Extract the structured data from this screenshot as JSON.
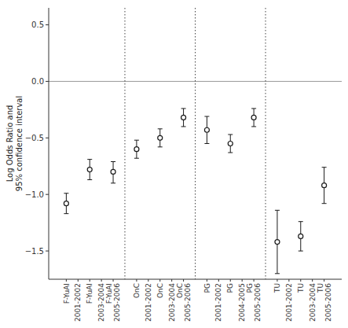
{
  "chart_data": {
    "type": "errorbar",
    "y_label": "Log Odds Ratio and\n95% confidence interval",
    "categories": [
      null,
      "F-YuAI",
      "2001-2002",
      "F-YuAI",
      "2003-2004",
      "F-YuAI\n2005-2006",
      null,
      "OnC",
      "2001-2002",
      "OnC",
      "2003-2004",
      "OnC\n2005-2006",
      null,
      "PG",
      "2001-2002",
      "PG",
      "2004-2005",
      "PG\n2005-2006",
      null,
      "TU",
      "2001-2002",
      "TU",
      "2003-2004",
      "TU\n2005-2006",
      null
    ],
    "values": [
      null,
      -1.08,
      null,
      -0.78,
      null,
      -0.8,
      null,
      -0.6,
      null,
      -0.5,
      null,
      -0.32,
      null,
      -0.43,
      null,
      -0.55,
      null,
      -0.32,
      null,
      -1.42,
      null,
      -1.37,
      null,
      -0.92,
      null
    ],
    "lower": [
      null,
      -1.17,
      null,
      -0.87,
      null,
      -0.9,
      null,
      -0.68,
      null,
      -0.58,
      null,
      -0.4,
      null,
      -0.55,
      null,
      -0.63,
      null,
      -0.4,
      null,
      -1.7,
      null,
      -1.5,
      null,
      -1.08,
      null
    ],
    "upper": [
      null,
      -0.99,
      null,
      -0.69,
      null,
      -0.71,
      null,
      -0.52,
      null,
      -0.42,
      null,
      -0.24,
      null,
      -0.31,
      null,
      -0.47,
      null,
      -0.24,
      null,
      -1.14,
      null,
      -1.24,
      null,
      -0.76,
      null
    ],
    "color": "#1a1a1a",
    "hline": 0.0,
    "vlines": [
      6,
      12,
      18
    ],
    "ylim": [
      -1.75,
      0.65
    ],
    "yticks": [
      {
        "value": -1.5,
        "label": "−1.5"
      },
      {
        "value": -1.0,
        "label": "−1.0"
      },
      {
        "value": -0.5,
        "label": "−0.5"
      },
      {
        "value": 0.0,
        "label": "0.0"
      },
      0.5
    ],
    "grid": false
  }
}
